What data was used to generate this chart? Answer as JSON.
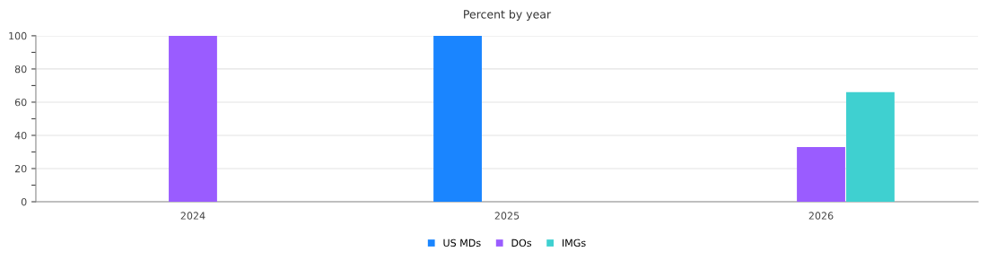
{
  "chart_data": {
    "type": "bar",
    "title": "Percent by year",
    "categories": [
      "2024",
      "2025",
      "2026"
    ],
    "series": [
      {
        "name": "US MDs",
        "color": "#1a85ff",
        "values": [
          0,
          100,
          0
        ]
      },
      {
        "name": "DOs",
        "color": "#9a5cff",
        "values": [
          100,
          0,
          33
        ]
      },
      {
        "name": "IMGs",
        "color": "#3fd0d0",
        "values": [
          0,
          0,
          66
        ]
      }
    ],
    "ylim": [
      0,
      100
    ],
    "yticks": [
      0,
      {
        "value": 10,
        "label": null
      },
      20,
      {
        "value": 30,
        "label": null
      },
      40,
      {
        "value": 50,
        "label": null
      },
      60,
      {
        "value": 70,
        "label": null
      },
      80,
      {
        "value": 90,
        "label": null
      },
      100
    ],
    "grid": "y",
    "legend": "bottom"
  }
}
